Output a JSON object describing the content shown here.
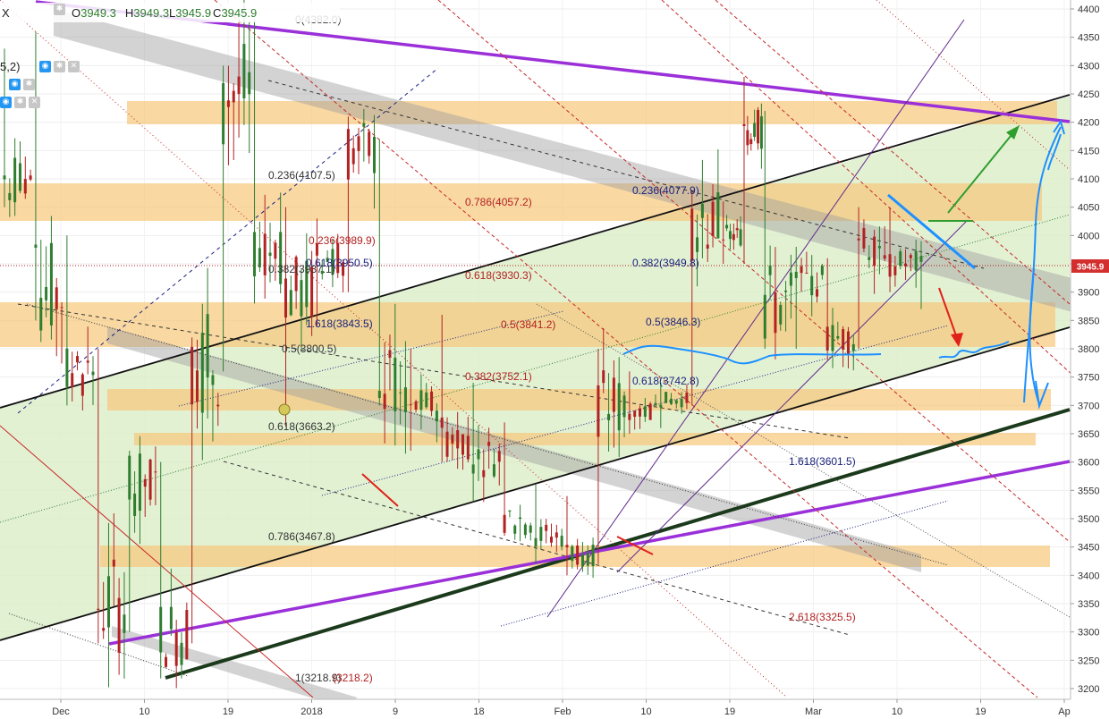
{
  "symbol_stub": "X",
  "ohlc_header": {
    "open_label": "O",
    "open": "3949.3",
    "high_label": "H",
    "high": "3949.3",
    "low_label": "L",
    "low": "3945.9",
    "close_label": "C",
    "close": "3945.9"
  },
  "indicator_stub": "5,2)",
  "current_price_label": "3945.9",
  "colors": {
    "candle_up": "#2f7d2f",
    "candle_down": "#b22222",
    "zone_orange": "#f7c77a",
    "channel_green": "#dcedc8",
    "purple_line": "#9b30d9",
    "blue_arrow": "#1e90ff",
    "green_arrow": "#2e9e2e",
    "red_arrow": "#e0201a",
    "current_price_bg": "#d32f2f"
  },
  "chart_data": {
    "type": "candlestick",
    "ylim": [
      3200,
      4400
    ],
    "yticks": [
      4400,
      4350,
      4300,
      4250,
      4200,
      4150,
      4100,
      4050,
      4000,
      3950,
      3900,
      3850,
      3800,
      3750,
      3700,
      3650,
      3600,
      3550,
      3500,
      3450,
      3400,
      3350,
      3300,
      3250,
      3200
    ],
    "xticks": [
      "Dec",
      "10",
      "19",
      "2018",
      "9",
      "18",
      "Feb",
      "10",
      "19",
      "Mar",
      "10",
      "19",
      "Ap"
    ],
    "candles_approx": [
      {
        "t": 0,
        "o": 4200,
        "h": 4330,
        "l": 4050,
        "c": 4100
      },
      {
        "t": 3,
        "o": 4100,
        "h": 4360,
        "l": 3850,
        "c": 3900
      },
      {
        "t": 6,
        "o": 3900,
        "h": 4000,
        "l": 3700,
        "c": 3760
      },
      {
        "t": 9,
        "o": 3760,
        "h": 3800,
        "l": 3280,
        "c": 3350
      },
      {
        "t": 12,
        "o": 3350,
        "h": 3620,
        "l": 3300,
        "c": 3560
      },
      {
        "t": 15,
        "o": 3560,
        "h": 3600,
        "l": 3218,
        "c": 3300
      },
      {
        "t": 18,
        "o": 3300,
        "h": 3820,
        "l": 3280,
        "c": 3780
      },
      {
        "t": 21,
        "o": 3780,
        "h": 4300,
        "l": 3760,
        "c": 4250
      },
      {
        "t": 24,
        "o": 4250,
        "h": 4382,
        "l": 3880,
        "c": 3920
      },
      {
        "t": 27,
        "o": 3920,
        "h": 4050,
        "l": 3663,
        "c": 3900
      },
      {
        "t": 30,
        "o": 3900,
        "h": 4030,
        "l": 3840,
        "c": 3960
      },
      {
        "t": 33,
        "o": 3960,
        "h": 4210,
        "l": 3900,
        "c": 4150
      },
      {
        "t": 36,
        "o": 4150,
        "h": 4170,
        "l": 3700,
        "c": 3750
      },
      {
        "t": 39,
        "o": 3750,
        "h": 3800,
        "l": 3620,
        "c": 3700
      },
      {
        "t": 42,
        "o": 3700,
        "h": 3860,
        "l": 3600,
        "c": 3650
      },
      {
        "t": 45,
        "o": 3650,
        "h": 3740,
        "l": 3530,
        "c": 3610
      },
      {
        "t": 48,
        "o": 3610,
        "h": 3670,
        "l": 3470,
        "c": 3500
      },
      {
        "t": 51,
        "o": 3500,
        "h": 3560,
        "l": 3420,
        "c": 3470
      },
      {
        "t": 54,
        "o": 3470,
        "h": 3540,
        "l": 3400,
        "c": 3440
      },
      {
        "t": 57,
        "o": 3440,
        "h": 3800,
        "l": 3420,
        "c": 3700
      },
      {
        "t": 60,
        "o": 3700,
        "h": 3760,
        "l": 3650,
        "c": 3690
      },
      {
        "t": 63,
        "o": 3690,
        "h": 3740,
        "l": 3660,
        "c": 3710
      },
      {
        "t": 66,
        "o": 3710,
        "h": 4080,
        "l": 3700,
        "c": 4020
      },
      {
        "t": 69,
        "o": 4020,
        "h": 4060,
        "l": 3950,
        "c": 4000
      },
      {
        "t": 71,
        "o": 4000,
        "h": 4280,
        "l": 3950,
        "c": 4200
      },
      {
        "t": 73,
        "o": 4200,
        "h": 4220,
        "l": 3800,
        "c": 3880
      },
      {
        "t": 76,
        "o": 3880,
        "h": 3980,
        "l": 3800,
        "c": 3920
      },
      {
        "t": 79,
        "o": 3920,
        "h": 3960,
        "l": 3780,
        "c": 3820
      },
      {
        "t": 82,
        "o": 3820,
        "h": 4050,
        "l": 3800,
        "c": 3990
      },
      {
        "t": 85,
        "o": 3990,
        "h": 4050,
        "l": 3900,
        "c": 3950
      },
      {
        "t": 88,
        "o": 3950,
        "h": 3990,
        "l": 3870,
        "c": 3946
      }
    ],
    "annotations": [
      {
        "text": "0(4382.0)",
        "color": "#333333"
      },
      {
        "text": "0.236(4107.5)",
        "color": "#333333"
      },
      {
        "text": "0.236(3989.9)",
        "color": "#b22222"
      },
      {
        "text": "0.382(3937.1)",
        "color": "#333333"
      },
      {
        "text": "0.618(3950.5)",
        "color": "#1a237e"
      },
      {
        "text": "1.618(3843.5)",
        "color": "#1a237e"
      },
      {
        "text": "0.5(3800.5)",
        "color": "#333333"
      },
      {
        "text": "0.618(3663.2)",
        "color": "#333333"
      },
      {
        "text": "0.786(3467.8)",
        "color": "#333333"
      },
      {
        "text": "1(3218.9)",
        "color": "#333333"
      },
      {
        "text": "(3218.2)",
        "color": "#b22222"
      },
      {
        "text": "0.786(4057.2)",
        "color": "#b22222"
      },
      {
        "text": "0.618(3930.3)",
        "color": "#b22222"
      },
      {
        "text": "0.5(3841.2)",
        "color": "#b22222"
      },
      {
        "text": "0.382(3752.1)",
        "color": "#b22222"
      },
      {
        "text": "0.236(4077.9)",
        "color": "#1a237e"
      },
      {
        "text": "0.382(3949.8)",
        "color": "#1a237e"
      },
      {
        "text": "0.5(3846.3)",
        "color": "#1a237e"
      },
      {
        "text": "0.618(3742.8)",
        "color": "#1a237e"
      },
      {
        "text": "1.618(3601.5)",
        "color": "#1a237e"
      },
      {
        "text": "2.618(3325.5)",
        "color": "#b22222"
      }
    ]
  }
}
